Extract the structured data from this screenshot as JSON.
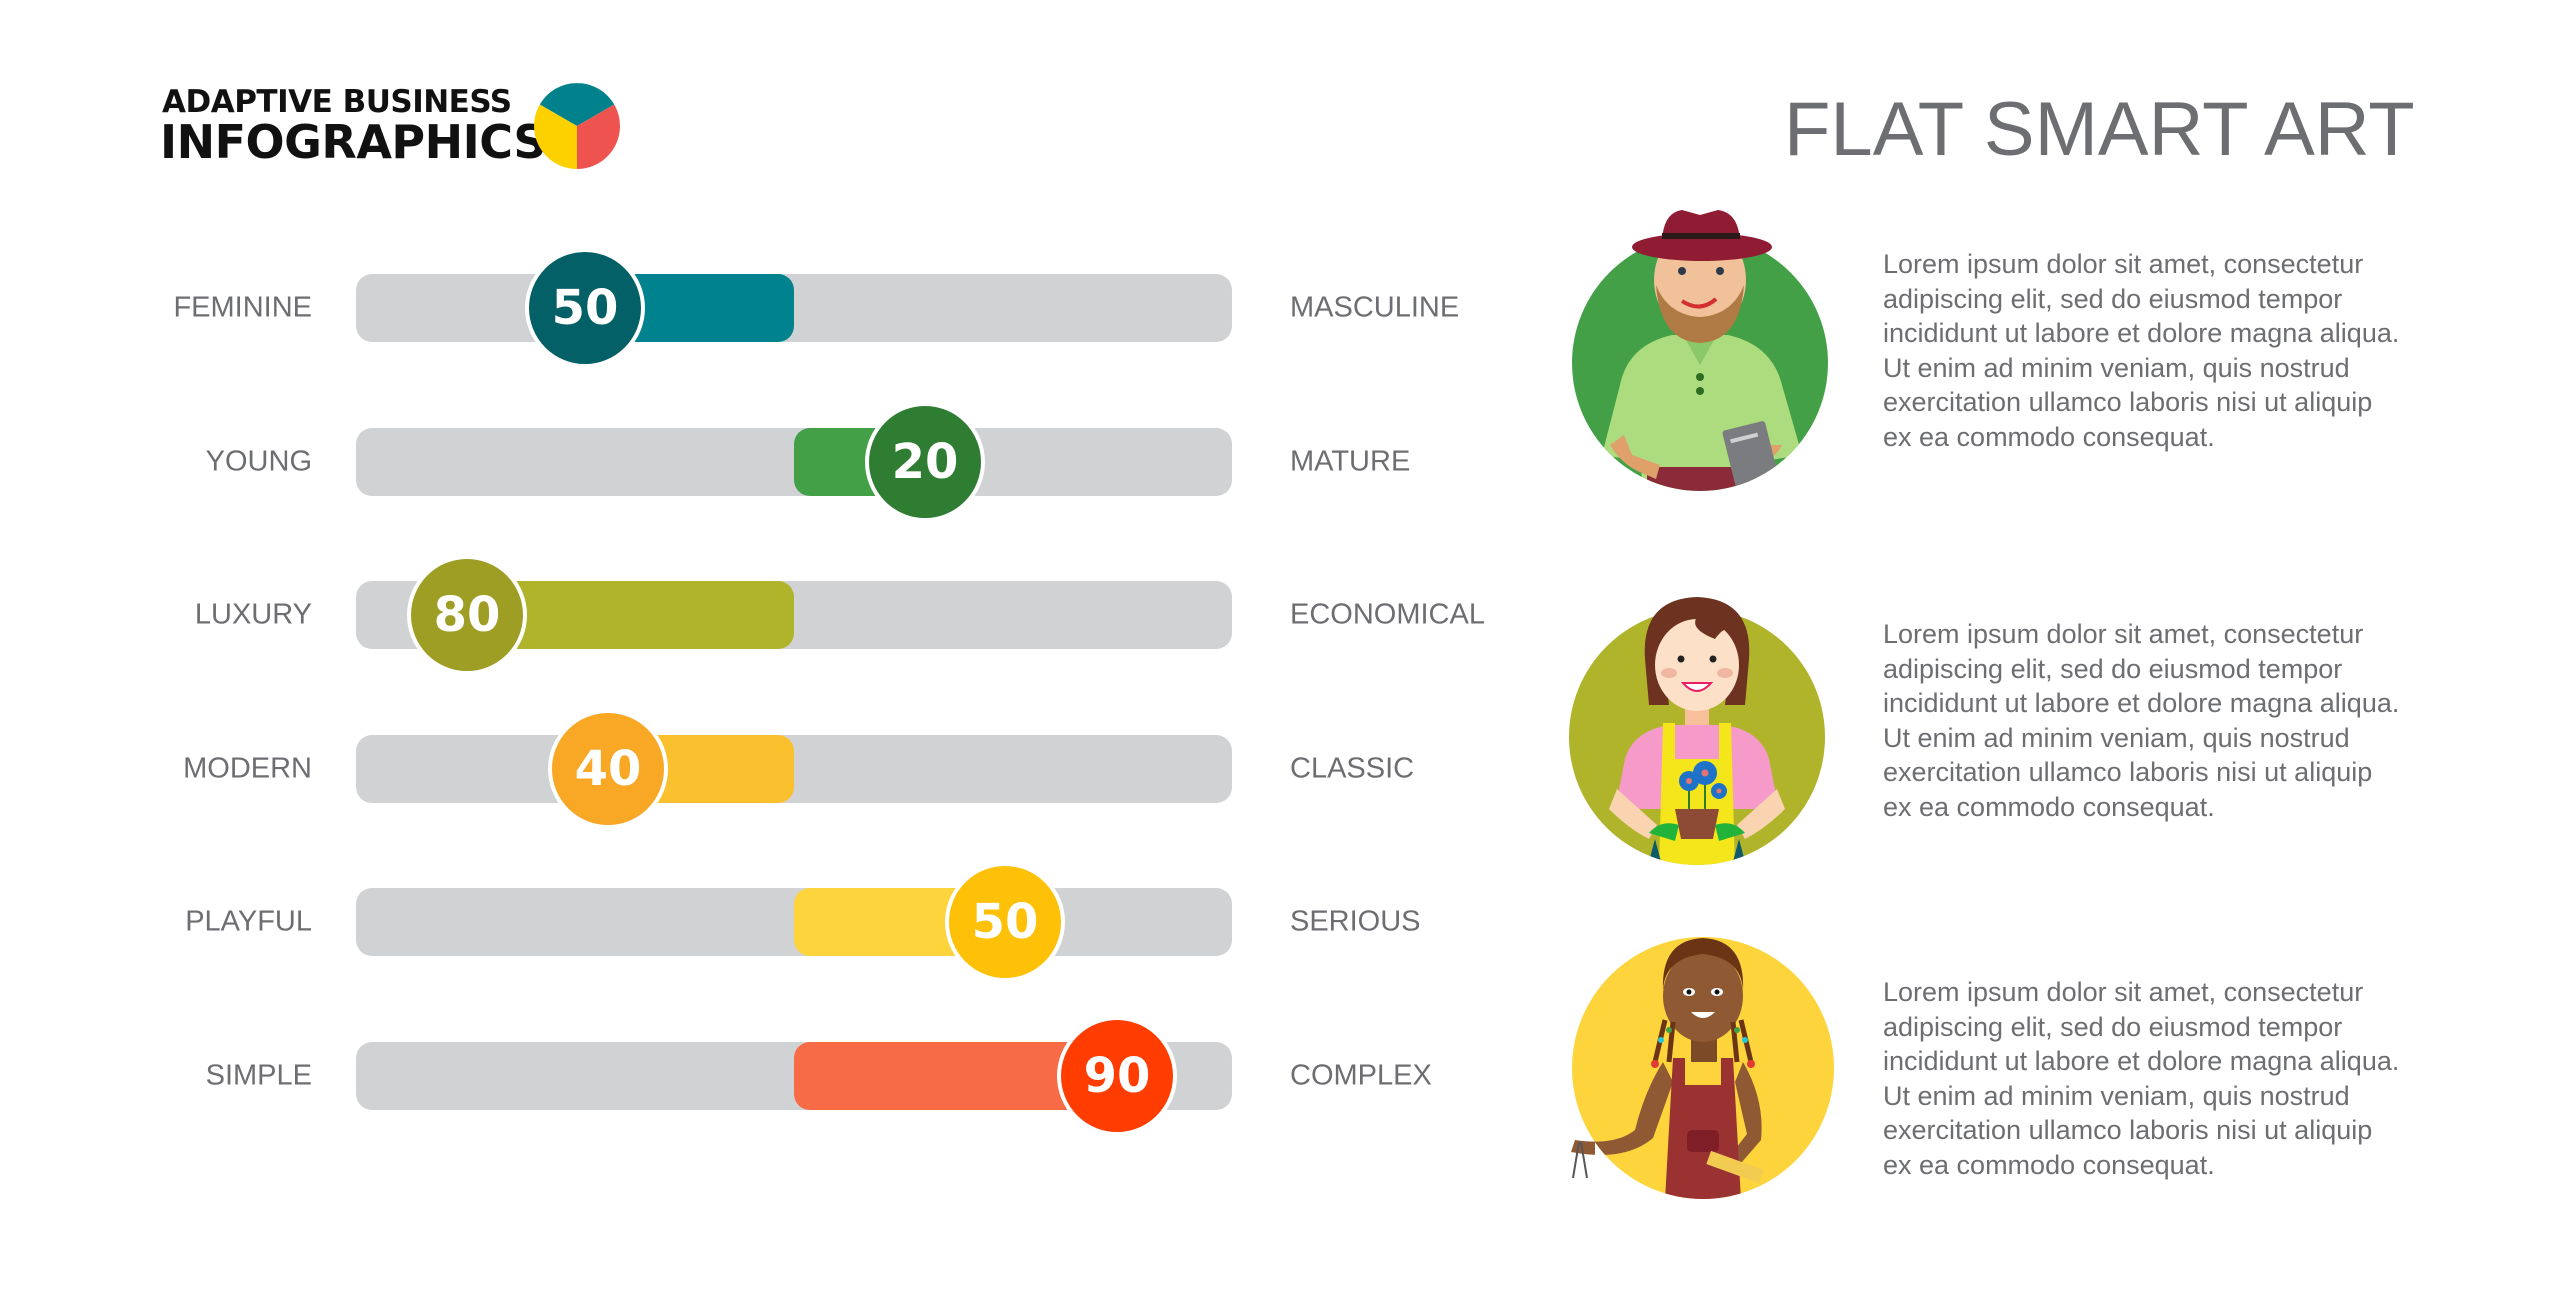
{
  "header": {
    "logo_line1": "ADAPTIVE BUSINESS",
    "logo_line2": "INFOGRAPHICS",
    "logo_icon": "pie-chart-icon",
    "logo_colors": [
      "#00818c",
      "#ef5350",
      "#fdd000"
    ],
    "title": "FLAT SMART ART"
  },
  "rows": [
    {
      "left": "FEMININE",
      "right": "MASCULINE",
      "value": "50",
      "fill_color": "#00838f",
      "knob_color": "#036066"
    },
    {
      "left": "YOUNG",
      "right": "MATURE",
      "value": "20",
      "fill_color": "#43a047",
      "knob_color": "#2e7d32"
    },
    {
      "left": "LUXURY",
      "right": "ECONOMICAL",
      "value": "80",
      "fill_color": "#afb42b",
      "knob_color": "#9e9d24"
    },
    {
      "left": "MODERN",
      "right": "CLASSIC",
      "value": "40",
      "fill_color": "#fbc02d",
      "knob_color": "#f9a825"
    },
    {
      "left": "PLAYFUL",
      "right": "SERIOUS",
      "value": "50",
      "fill_color": "#fdd43c",
      "knob_color": "#ffc107"
    },
    {
      "left": "SIMPLE",
      "right": "COMPLEX",
      "value": "90",
      "fill_color": "#f76c47",
      "knob_color": "#ff3d00"
    }
  ],
  "profiles": [
    {
      "avatar": "man-with-hat-avatar",
      "bg_color": "#43a047",
      "text": "Lorem ipsum dolor sit amet, consectetur adipiscing elit, sed do eiusmod tempor incididunt ut labore et dolore magna aliqua. Ut enim ad minim veniam, quis nostrud exercitation ullamco laboris nisi ut aliquip ex ea commodo consequat."
    },
    {
      "avatar": "woman-gardener-avatar",
      "bg_color": "#afb42b",
      "text": "Lorem ipsum dolor sit amet, consectetur adipiscing elit, sed do eiusmod tempor incididunt ut labore et dolore magna aliqua. Ut enim ad minim veniam, quis nostrud exercitation ullamco laboris nisi ut aliquip ex ea commodo consequat."
    },
    {
      "avatar": "girl-student-avatar",
      "bg_color": "#fdd43c",
      "text": "Lorem ipsum dolor sit amet, consectetur adipiscing elit, sed do eiusmod tempor incididunt ut labore et dolore magna aliqua. Ut enim ad minim veniam, quis nostrud exercitation ullamco laboris nisi ut aliquip ex ea commodo consequat."
    }
  ],
  "chart_data": {
    "type": "bar",
    "subtype": "diverging-slider",
    "title": "FLAT SMART ART",
    "categories": [
      "FEMININE / MASCULINE",
      "YOUNG / MATURE",
      "LUXURY / ECONOMICAL",
      "MODERN / CLASSIC",
      "PLAYFUL / SERIOUS",
      "SIMPLE / COMPLEX"
    ],
    "left_labels": [
      "FEMININE",
      "YOUNG",
      "LUXURY",
      "MODERN",
      "PLAYFUL",
      "SIMPLE"
    ],
    "right_labels": [
      "MASCULINE",
      "MATURE",
      "ECONOMICAL",
      "CLASSIC",
      "SERIOUS",
      "COMPLEX"
    ],
    "values": [
      50,
      20,
      80,
      40,
      50,
      90
    ],
    "direction": [
      "left",
      "right",
      "left",
      "left",
      "right",
      "right"
    ],
    "signed_values": [
      -50,
      20,
      -80,
      -40,
      50,
      90
    ],
    "colors": [
      "#00838f",
      "#43a047",
      "#afb42b",
      "#fbc02d",
      "#fdd43c",
      "#f76c47"
    ],
    "xlim": [
      -100,
      100
    ],
    "grid": false,
    "legend": "none"
  }
}
